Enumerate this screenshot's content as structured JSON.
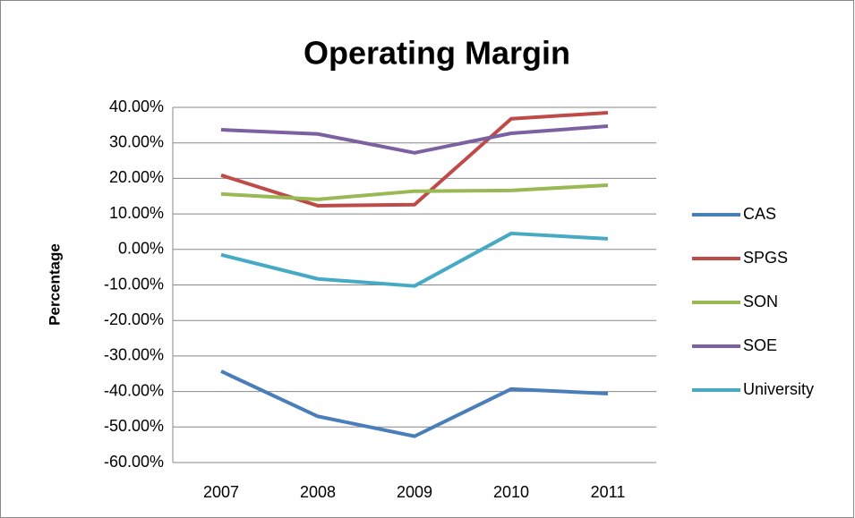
{
  "chart_data": {
    "type": "line",
    "title": "Operating Margin",
    "y_label": "Percentage",
    "categories": [
      "2007",
      "2008",
      "2009",
      "2010",
      "2011"
    ],
    "series": [
      {
        "name": "CAS",
        "color": "#4a7ebb",
        "values": [
          -34.3,
          -47,
          -52.6,
          -39.3,
          -40.6
        ]
      },
      {
        "name": "SPGS",
        "color": "#be4b48",
        "values": [
          20.9,
          12.3,
          12.6,
          36.8,
          38.5
        ]
      },
      {
        "name": "SON",
        "color": "#98b954",
        "values": [
          15.6,
          14.1,
          16.4,
          16.6,
          18.1
        ]
      },
      {
        "name": "SOE",
        "color": "#7d60a0",
        "values": [
          33.7,
          32.5,
          27.2,
          32.7,
          34.7
        ]
      },
      {
        "name": "University",
        "color": "#46aac5",
        "values": [
          -1.5,
          -8.3,
          -10.3,
          4.5,
          3
        ]
      }
    ],
    "ylim": [
      -60,
      40
    ],
    "yticks": [
      {
        "value": -60,
        "label": "-60.00%"
      },
      {
        "value": -50,
        "label": "-50.00%"
      },
      {
        "value": -40,
        "label": "-40.00%"
      },
      {
        "value": -30,
        "label": "-30.00%"
      },
      {
        "value": -20,
        "label": "-20.00%"
      },
      {
        "value": -10,
        "label": "-10.00%"
      },
      {
        "value": 0,
        "label": "0.00%"
      },
      {
        "value": 10,
        "label": "10.00%"
      },
      {
        "value": 20,
        "label": "20.00%"
      },
      {
        "value": 30,
        "label": "30.00%"
      },
      {
        "value": 40,
        "label": "40.00%"
      }
    ],
    "grid": true,
    "legend": "right"
  }
}
